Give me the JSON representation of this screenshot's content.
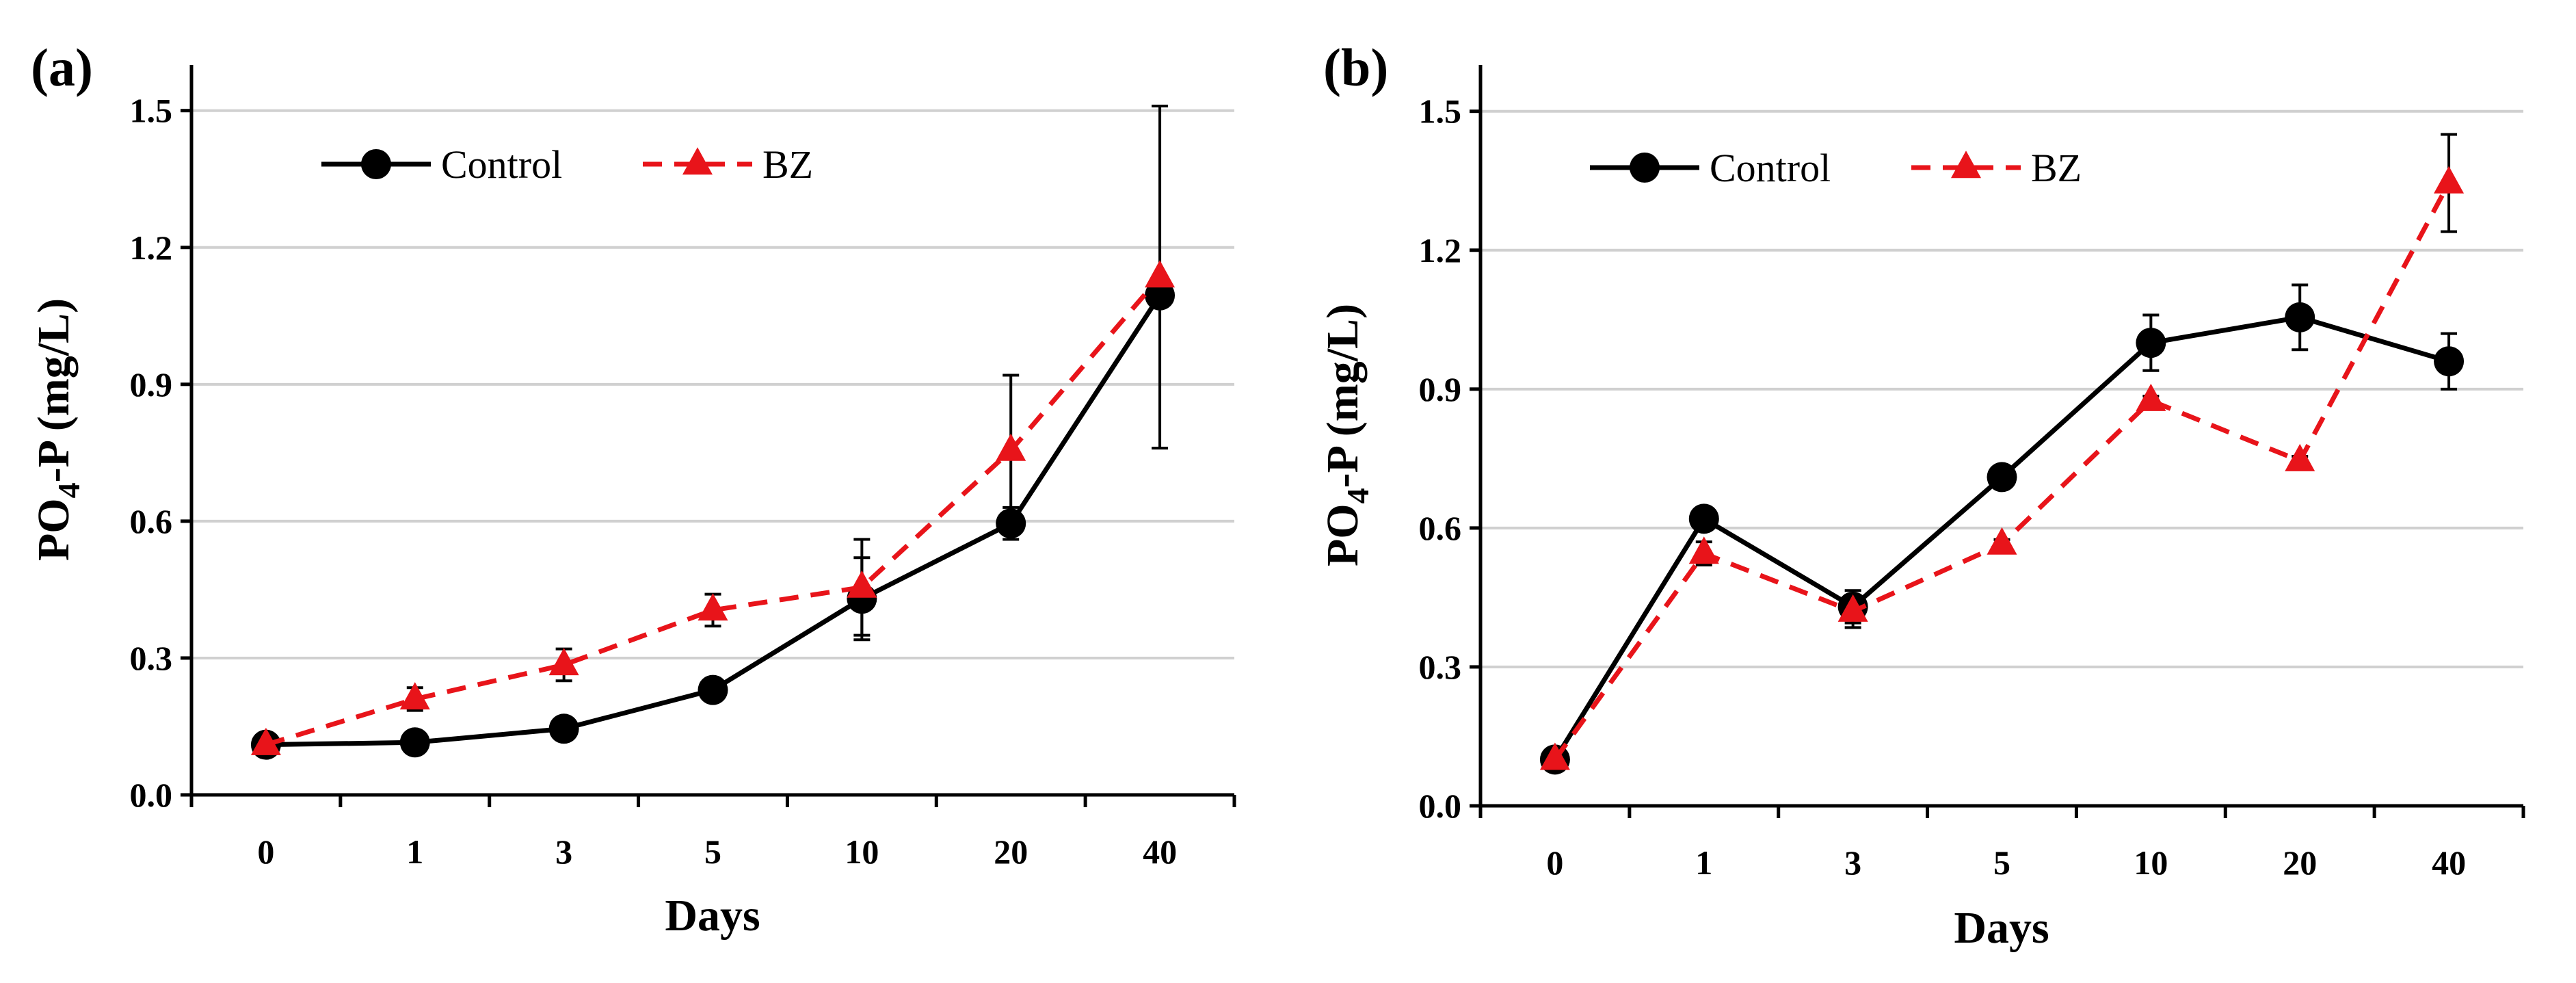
{
  "chart_data": [
    {
      "type": "line",
      "panel_label": "(a)",
      "categories": [
        "0",
        "1",
        "3",
        "5",
        "10",
        "20",
        "40"
      ],
      "xlabel": "Days",
      "ylabel_parts": {
        "pre": "PO",
        "sub": "4",
        "post": "-P (mg/L)"
      },
      "ylim": [
        0,
        1.6
      ],
      "yticks": [
        "0.0",
        "0.3",
        "0.6",
        "0.9",
        "1.2",
        "1.5"
      ],
      "ytick_values": [
        0,
        0.3,
        0.6,
        0.9,
        1.2,
        1.5
      ],
      "grid": true,
      "legend_position": "top-left",
      "series": [
        {
          "name": "Control",
          "color": "#000000",
          "marker": "circle",
          "dashed": false,
          "values": [
            0.11,
            0.115,
            0.145,
            0.23,
            0.43,
            0.595,
            1.095
          ],
          "errors": [
            0.01,
            0.01,
            0.01,
            0.01,
            0.09,
            0.035,
            0.015
          ]
        },
        {
          "name": "BZ",
          "color": "#e8141a",
          "marker": "triangle",
          "dashed": true,
          "values": [
            0.11,
            0.21,
            0.285,
            0.405,
            0.455,
            0.755,
            1.135
          ],
          "errors": [
            0.01,
            0.025,
            0.035,
            0.035,
            0.105,
            0.165,
            0.375
          ]
        }
      ]
    },
    {
      "type": "line",
      "panel_label": "(b)",
      "categories": [
        "0",
        "1",
        "3",
        "5",
        "10",
        "20",
        "40"
      ],
      "xlabel": "Days",
      "ylabel_parts": {
        "pre": "PO",
        "sub": "4",
        "post": "-P (mg/L)"
      },
      "ylim": [
        0,
        1.6
      ],
      "yticks": [
        "0.0",
        "0.3",
        "0.6",
        "0.9",
        "1.2",
        "1.5"
      ],
      "ytick_values": [
        0,
        0.3,
        0.6,
        0.9,
        1.2,
        1.5
      ],
      "grid": true,
      "legend_position": "top-left",
      "series": [
        {
          "name": "Control",
          "color": "#000000",
          "marker": "circle",
          "dashed": false,
          "values": [
            0.1,
            0.62,
            0.43,
            0.71,
            1.0,
            1.055,
            0.96
          ],
          "errors": [
            0.01,
            0.015,
            0.035,
            0.01,
            0.06,
            0.07,
            0.06
          ]
        },
        {
          "name": "BZ",
          "color": "#e8141a",
          "marker": "triangle",
          "dashed": true,
          "values": [
            0.1,
            0.545,
            0.42,
            0.565,
            0.875,
            0.745,
            1.345
          ],
          "errors": [
            0.01,
            0.025,
            0.035,
            0.01,
            0.01,
            0.01,
            0.105
          ]
        }
      ]
    }
  ]
}
